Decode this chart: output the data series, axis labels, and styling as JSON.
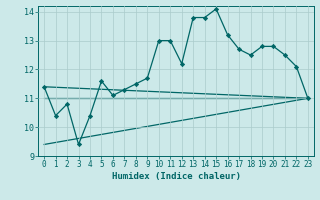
{
  "title": "",
  "xlabel": "Humidex (Indice chaleur)",
  "ylabel": "",
  "background_color": "#cce9e9",
  "grid_color": "#aacccc",
  "line_color": "#006666",
  "xlim": [
    -0.5,
    23.5
  ],
  "ylim": [
    9,
    14.2
  ],
  "yticks": [
    9,
    10,
    11,
    12,
    13,
    14
  ],
  "xticks": [
    0,
    1,
    2,
    3,
    4,
    5,
    6,
    7,
    8,
    9,
    10,
    11,
    12,
    13,
    14,
    15,
    16,
    17,
    18,
    19,
    20,
    21,
    22,
    23
  ],
  "curve1_x": [
    0,
    1,
    2,
    3,
    4,
    5,
    6,
    7,
    8,
    9,
    10,
    11,
    12,
    13,
    14,
    15,
    16,
    17,
    18,
    19,
    20,
    21,
    22,
    23
  ],
  "curve1_y": [
    11.4,
    10.4,
    10.8,
    9.4,
    10.4,
    11.6,
    11.1,
    11.3,
    11.5,
    11.7,
    13.0,
    13.0,
    12.2,
    13.8,
    13.8,
    14.1,
    13.2,
    12.7,
    12.5,
    12.8,
    12.8,
    12.5,
    12.1,
    11.0
  ],
  "line1_x": [
    0,
    23
  ],
  "line1_y": [
    11.0,
    11.0
  ],
  "line2_x": [
    0,
    23
  ],
  "line2_y": [
    11.4,
    11.0
  ],
  "line3_x": [
    0,
    23
  ],
  "line3_y": [
    9.4,
    11.0
  ],
  "marker": "D",
  "marker_size": 2.2,
  "line_width": 0.9
}
